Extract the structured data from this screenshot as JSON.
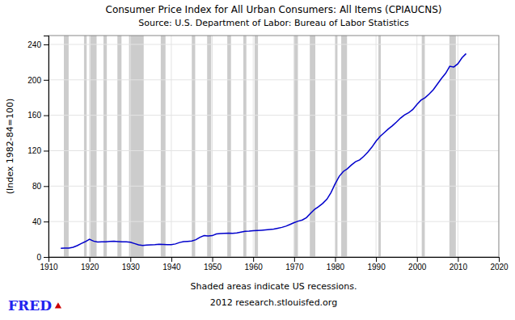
{
  "chart_data": {
    "type": "line",
    "title": "Consumer Price Index for All Urban Consumers: All Items (CPIAUCNS)",
    "subtitle": "Source: U.S. Department of Labor: Bureau of Labor Statistics",
    "y_label": "(Index 1982-84=100)",
    "annotations": [
      "Shaded areas indicate US recessions.",
      "2012 research.stlouisfed.org",
      "FRED"
    ],
    "color": "#0000cc",
    "grid": true,
    "xlim": [
      1910,
      2020
    ],
    "ylim": [
      0,
      250
    ],
    "xticks": [
      1910,
      1920,
      1930,
      1940,
      1950,
      1960,
      1970,
      1980,
      1990,
      2000,
      2010,
      2020
    ],
    "yticks": [
      0,
      40,
      80,
      120,
      160,
      200,
      240
    ],
    "recessions": [
      [
        1913.75,
        1914.92
      ],
      [
        1918.67,
        1919.33
      ],
      [
        1920.17,
        1921.75
      ],
      [
        1923.42,
        1924.25
      ],
      [
        1926.83,
        1927.83
      ],
      [
        1929.67,
        1933.25
      ],
      [
        1937.42,
        1938.58
      ],
      [
        1945.0,
        1945.83
      ],
      [
        1948.75,
        1949.75
      ],
      [
        1953.67,
        1954.58
      ],
      [
        1957.58,
        1958.33
      ],
      [
        1960.33,
        1961.17
      ],
      [
        1969.92,
        1970.92
      ],
      [
        1973.83,
        1975.17
      ],
      [
        1980.0,
        1980.58
      ],
      [
        1981.5,
        1982.92
      ],
      [
        1990.58,
        1991.17
      ],
      [
        2001.17,
        2001.92
      ],
      [
        2007.92,
        2009.5
      ]
    ],
    "x": [
      1913,
      1914,
      1915,
      1916,
      1917,
      1918,
      1919,
      1920,
      1921,
      1922,
      1923,
      1924,
      1925,
      1926,
      1927,
      1928,
      1929,
      1930,
      1931,
      1932,
      1933,
      1934,
      1935,
      1936,
      1937,
      1938,
      1939,
      1940,
      1941,
      1942,
      1943,
      1944,
      1945,
      1946,
      1947,
      1948,
      1949,
      1950,
      1951,
      1952,
      1953,
      1954,
      1955,
      1956,
      1957,
      1958,
      1959,
      1960,
      1961,
      1962,
      1963,
      1964,
      1965,
      1966,
      1967,
      1968,
      1969,
      1970,
      1971,
      1972,
      1973,
      1974,
      1975,
      1976,
      1977,
      1978,
      1979,
      1980,
      1981,
      1982,
      1983,
      1984,
      1985,
      1986,
      1987,
      1988,
      1989,
      1990,
      1991,
      1992,
      1993,
      1994,
      1995,
      1996,
      1997,
      1998,
      1999,
      2000,
      2001,
      2002,
      2003,
      2004,
      2005,
      2006,
      2007,
      2008,
      2009,
      2010,
      2011,
      2012
    ],
    "values": [
      9.9,
      10.0,
      10.1,
      10.9,
      12.8,
      15.1,
      17.3,
      20.0,
      17.9,
      16.8,
      17.1,
      17.1,
      17.5,
      17.7,
      17.4,
      17.1,
      17.1,
      16.7,
      15.2,
      13.7,
      13.0,
      13.4,
      13.7,
      13.9,
      14.4,
      14.1,
      13.9,
      14.0,
      14.7,
      16.3,
      17.3,
      17.6,
      18.0,
      19.5,
      22.3,
      24.1,
      23.8,
      24.1,
      26.0,
      26.5,
      26.7,
      26.9,
      26.8,
      27.2,
      28.1,
      28.9,
      29.1,
      29.6,
      29.9,
      30.2,
      30.6,
      31.0,
      31.5,
      32.4,
      33.4,
      34.8,
      36.7,
      38.8,
      40.5,
      41.8,
      44.4,
      49.3,
      53.8,
      56.9,
      60.6,
      65.2,
      72.6,
      82.4,
      90.9,
      96.5,
      99.6,
      103.9,
      107.6,
      109.6,
      113.6,
      118.3,
      124.0,
      130.7,
      136.2,
      140.3,
      144.5,
      148.2,
      152.4,
      156.9,
      160.5,
      163.0,
      166.6,
      172.2,
      177.1,
      179.9,
      184.0,
      188.9,
      195.3,
      201.6,
      207.3,
      215.3,
      214.5,
      218.1,
      224.9,
      229.6
    ]
  }
}
